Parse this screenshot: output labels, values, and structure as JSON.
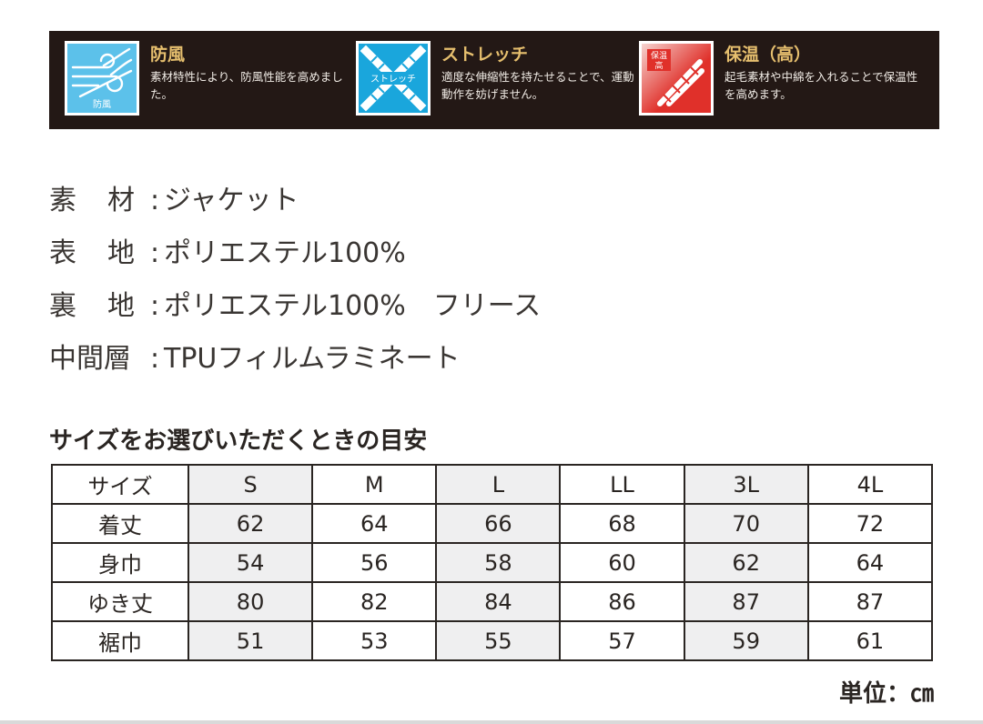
{
  "features": [
    {
      "title": "防風",
      "description": "素材特性により、防風性能を高めました。",
      "icon": "wind-icon",
      "icon_text": "防風",
      "color": "#5cc1ea"
    },
    {
      "title": "ストレッチ",
      "description": "適度な伸縮性を持たせることで、運動動作を妨げません。",
      "icon": "stretch-icon",
      "icon_text": "ストレッチ",
      "color": "#1aa6dc"
    },
    {
      "title": "保温（高）",
      "description": "起毛素材や中綿を入れることで保温性を高めます。",
      "icon": "thermometer-icon",
      "icon_text_1": "保温",
      "icon_text_2": "高",
      "color": "#e0302a"
    }
  ],
  "materials": [
    {
      "label_a": "素",
      "label_b": "材",
      "colon": ":",
      "value": "ジャケット"
    },
    {
      "label_a": "表",
      "label_b": "地",
      "colon": ":",
      "value": "ポリエステル100%"
    },
    {
      "label_a": "裏",
      "label_b": "地",
      "colon": ":",
      "value": "ポリエステル100%　フリース"
    },
    {
      "label": "中間層",
      "colon": ":",
      "value": "TPUフィルムラミネート"
    }
  ],
  "size_guide": {
    "heading": "サイズをお選びいただくときの目安",
    "header_label": "サイズ",
    "sizes": [
      "S",
      "M",
      "L",
      "LL",
      "3L",
      "4L"
    ],
    "rows": [
      {
        "label": "着丈",
        "values": [
          "62",
          "64",
          "66",
          "68",
          "70",
          "72"
        ]
      },
      {
        "label": "身巾",
        "values": [
          "54",
          "56",
          "58",
          "60",
          "62",
          "64"
        ]
      },
      {
        "label": "ゆき丈",
        "values": [
          "80",
          "82",
          "84",
          "86",
          "87",
          "87"
        ]
      },
      {
        "label": "裾巾",
        "values": [
          "51",
          "53",
          "55",
          "57",
          "59",
          "61"
        ]
      }
    ],
    "unit": "単位：㎝"
  }
}
